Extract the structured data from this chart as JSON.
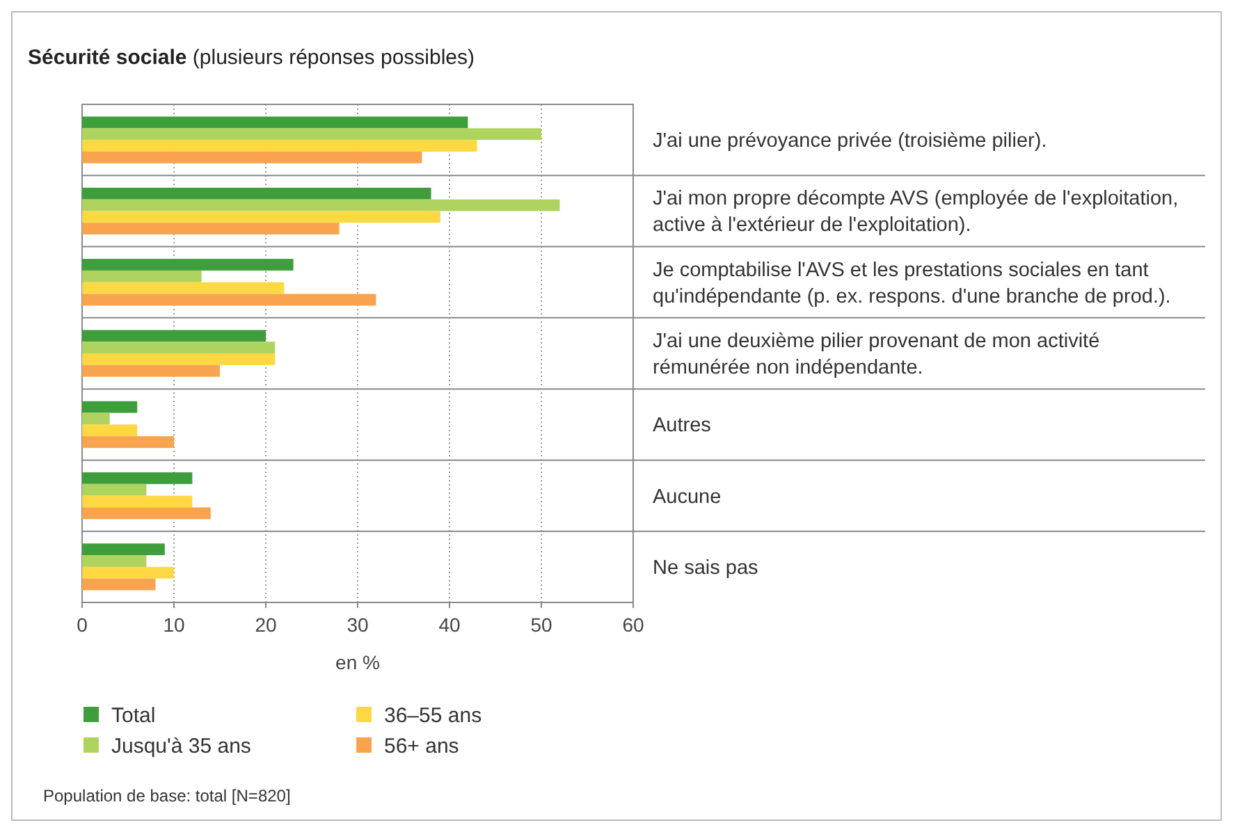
{
  "chart_data": {
    "type": "bar",
    "orientation": "horizontal",
    "title": "Sécurité sociale",
    "subtitle": "(plusieurs réponses possibles)",
    "xlabel": "en %",
    "categories": [
      "J'ai une prévoyance privée (troisième pilier).",
      "J'ai mon propre décompte AVS (employée de l'exploitation, active à l'extérieur de l'exploitation).",
      "Je comptabilise l'AVS et les prestations sociales en tant qu'indépendante (p. ex. respons. d'une branche de prod.).",
      "J'ai une deuxième pilier provenant de mon activité rémunérée non indépendante.",
      "Autres",
      "Aucune",
      "Ne sais pas"
    ],
    "series": [
      {
        "name": "Total",
        "color": "#3f9e3c",
        "values": [
          42,
          38,
          23,
          20,
          6,
          12,
          9
        ]
      },
      {
        "name": "Jusqu'à 35 ans",
        "color": "#aed35e",
        "values": [
          50,
          52,
          13,
          21,
          3,
          7,
          7
        ]
      },
      {
        "name": "36–55 ans",
        "color": "#fdd842",
        "values": [
          43,
          39,
          22,
          21,
          6,
          12,
          10
        ]
      },
      {
        "name": "56+ ans",
        "color": "#f8a34e",
        "values": [
          37,
          28,
          32,
          15,
          10,
          14,
          8
        ]
      }
    ],
    "xlim": [
      0,
      60
    ],
    "xticks": [
      0,
      10,
      20,
      30,
      40,
      50,
      60
    ],
    "grid": "x",
    "legend": "bottom left",
    "annotations": [
      "Population de base: total [N=820]"
    ]
  }
}
